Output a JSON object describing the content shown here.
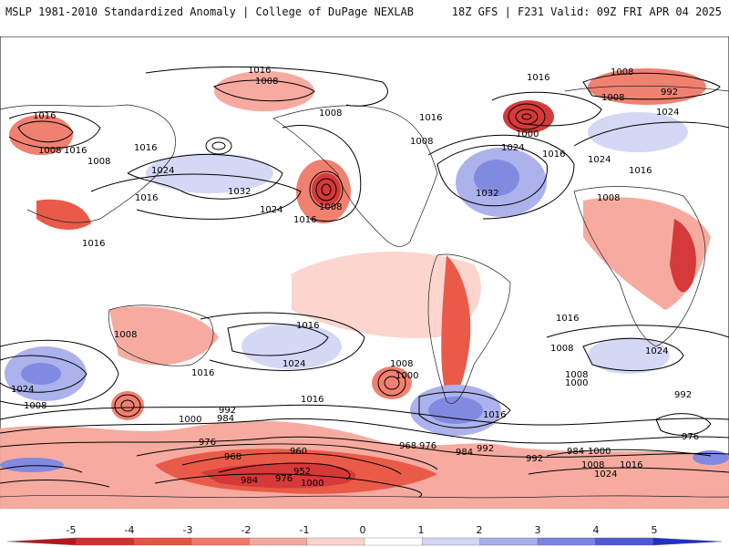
{
  "header": {
    "left": "MSLP 1981-2010 Standardized Anomaly | College of DuPage NEXLAB",
    "right": "18Z GFS | F231 Valid: 09Z FRI APR 04 2025"
  },
  "colorbar": {
    "ticks": [
      "-5",
      "-4",
      "-3",
      "-2",
      "-1",
      "0",
      "1",
      "2",
      "3",
      "4",
      "5"
    ],
    "colors": [
      "#b5171d",
      "#d42f2f",
      "#e8533f",
      "#f07b6a",
      "#f7a79b",
      "#fbd3cc",
      "#ffffff",
      "#d2d6f5",
      "#a8aeec",
      "#7b84e0",
      "#4e59d3",
      "#2030c4"
    ]
  },
  "map": {
    "contour_labels": [
      "1016",
      "1008",
      "1016",
      "1008",
      "1016",
      "1008",
      "1016",
      "1024",
      "1032",
      "1024",
      "1016",
      "1008",
      "1008",
      "1016",
      "1032",
      "1024",
      "1016",
      "1008",
      "992",
      "1000",
      "1024",
      "1016",
      "1008",
      "1008",
      "1016",
      "1024",
      "1016",
      "1008",
      "1024",
      "1016",
      "1008",
      "1000",
      "1008",
      "1016",
      "1016",
      "1024",
      "1008",
      "1000",
      "992",
      "984",
      "976",
      "968",
      "960",
      "952",
      "984",
      "976",
      "1000",
      "968",
      "976",
      "984",
      "992",
      "992",
      "1016",
      "1024",
      "1000",
      "1008",
      "976",
      "984",
      "992",
      "1000",
      "1008",
      "1016",
      "1024",
      "1016",
      "1008",
      "1016",
      "1016",
      "1008"
    ]
  }
}
